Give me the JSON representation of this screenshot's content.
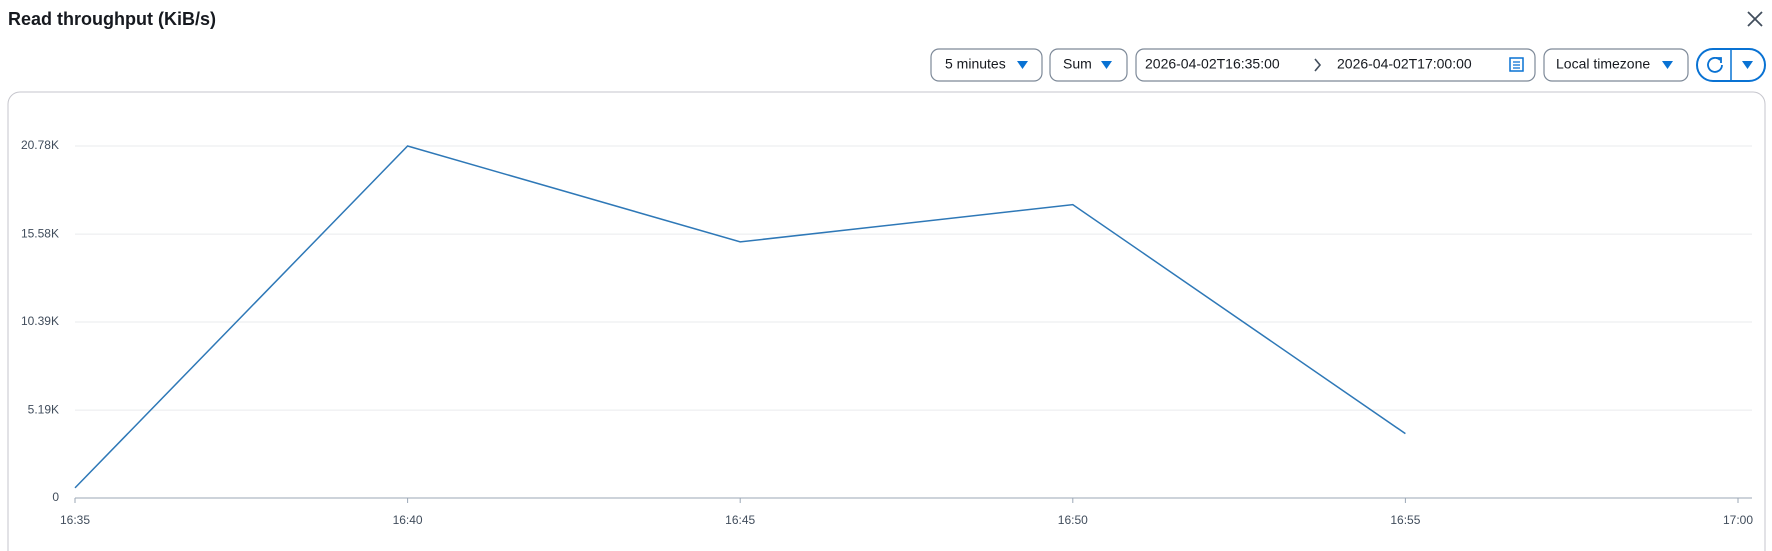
{
  "header": {
    "title": "Read throughput (KiB/s)"
  },
  "controls": {
    "period": "5 minutes",
    "statistic": "Sum",
    "start": "2026-04-02T16:35:00",
    "end": "2026-04-02T17:00:00",
    "timezone": "Local timezone"
  },
  "chart_data": {
    "type": "line",
    "categories": [
      "16:35",
      "16:40",
      "16:45",
      "16:50",
      "16:55",
      "17:00"
    ],
    "series": [
      {
        "color": "#2e78b7",
        "values": [
          600,
          20780,
          15120,
          17320,
          3800,
          null
        ]
      }
    ],
    "ylim": [
      0,
      20780
    ],
    "yticks": [
      0,
      {
        "value": 5190,
        "label": "5.19K"
      },
      {
        "value": 10390,
        "label": "10.39K"
      },
      {
        "value": 15580,
        "label": "15.58K"
      },
      {
        "value": 20780,
        "label": "20.78K"
      }
    ],
    "grid": true
  }
}
